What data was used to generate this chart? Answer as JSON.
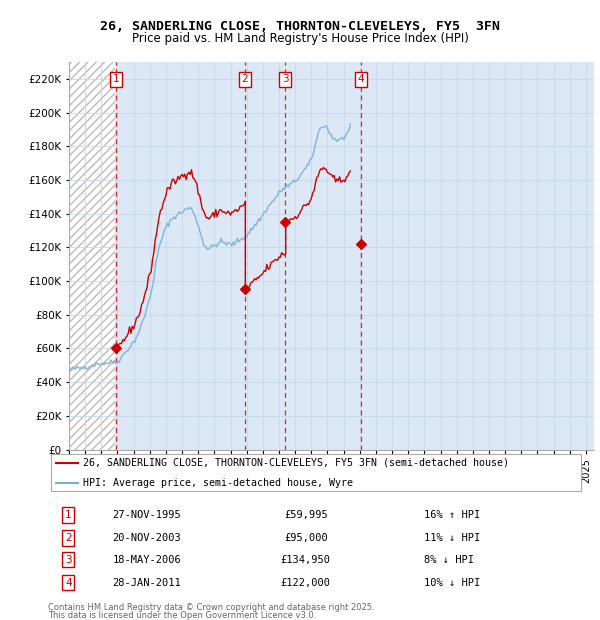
{
  "title_line1": "26, SANDERLING CLOSE, THORNTON-CLEVELEYS, FY5  3FN",
  "title_line2": "Price paid vs. HM Land Registry's House Price Index (HPI)",
  "ylim": [
    0,
    230000
  ],
  "yticks": [
    0,
    20000,
    40000,
    60000,
    80000,
    100000,
    120000,
    140000,
    160000,
    180000,
    200000,
    220000
  ],
  "xlim_start": 1993.0,
  "xlim_end": 2025.5,
  "background_hatch_end": 1995.83,
  "legend_line1": "26, SANDERLING CLOSE, THORNTON-CLEVELEYS, FY5 3FN (semi-detached house)",
  "legend_line2": "HPI: Average price, semi-detached house, Wyre",
  "transactions": [
    {
      "num": 1,
      "date": "27-NOV-1995",
      "price": 59995,
      "pct": "16%",
      "dir": "↑",
      "year": 1995.92
    },
    {
      "num": 2,
      "date": "20-NOV-2003",
      "price": 95000,
      "pct": "11%",
      "dir": "↓",
      "year": 2003.89
    },
    {
      "num": 3,
      "date": "18-MAY-2006",
      "price": 134950,
      "pct": "8%",
      "dir": "↓",
      "year": 2006.38
    },
    {
      "num": 4,
      "date": "28-JAN-2011",
      "price": 122000,
      "pct": "10%",
      "dir": "↓",
      "year": 2011.08
    }
  ],
  "footer_line1": "Contains HM Land Registry data © Crown copyright and database right 2025.",
  "footer_line2": "This data is licensed under the Open Government Licence v3.0.",
  "red_line_color": "#cc0000",
  "blue_line_color": "#7aafd4",
  "grid_color": "#c8d8e8",
  "background_blue": "#dce8f5",
  "hpi_base_values": [
    47500,
    47600,
    47700,
    47800,
    47900,
    48000,
    48100,
    48200,
    48300,
    48400,
    48500,
    48600,
    49000,
    49200,
    49400,
    49600,
    49800,
    50000,
    50200,
    50400,
    50600,
    50800,
    51000,
    51200,
    51000,
    51100,
    51200,
    51300,
    51400,
    51500,
    51600,
    51700,
    51800,
    51900,
    52000,
    52100,
    52500,
    53200,
    54000,
    54900,
    55800,
    56800,
    57800,
    58800,
    59800,
    60800,
    61800,
    62800,
    63800,
    65000,
    66500,
    68200,
    70000,
    72000,
    74200,
    76500,
    79000,
    81500,
    84200,
    87000,
    90000,
    93500,
    97500,
    102000,
    107000,
    112000,
    116000,
    119500,
    122500,
    125000,
    127500,
    129500,
    131500,
    133000,
    134500,
    135500,
    136500,
    137200,
    138000,
    138500,
    139000,
    139500,
    140000,
    140500,
    141000,
    141500,
    142000,
    142500,
    143000,
    143200,
    143000,
    142500,
    141500,
    140000,
    138000,
    135500,
    133000,
    130000,
    127500,
    125000,
    122500,
    121000,
    120000,
    119500,
    119200,
    119500,
    120000,
    120500,
    121000,
    121500,
    122000,
    122500,
    123000,
    123200,
    123000,
    122800,
    122500,
    122200,
    122000,
    121800,
    121500,
    121500,
    122000,
    122500,
    123000,
    123500,
    124000,
    124500,
    125000,
    125500,
    126000,
    126500,
    127000,
    128000,
    129000,
    130000,
    131000,
    132000,
    133000,
    134000,
    135000,
    136000,
    137000,
    138000,
    139000,
    140500,
    142000,
    143000,
    144000,
    145000,
    146000,
    147000,
    148000,
    149000,
    150000,
    151000,
    152000,
    153000,
    154000,
    154500,
    155000,
    155500,
    156000,
    156500,
    157000,
    157500,
    158000,
    158500,
    159000,
    160000,
    161000,
    162000,
    163000,
    164000,
    165000,
    166000,
    167000,
    168000,
    169000,
    170000,
    172000,
    175000,
    178000,
    181000,
    184000,
    187000,
    189500,
    191000,
    192000,
    192500,
    192000,
    191500,
    190500,
    189000,
    187500,
    186000,
    185000,
    184500,
    184000,
    183800,
    183500,
    183500,
    184000,
    184500,
    185000,
    186000,
    187000,
    188000,
    189000,
    190000
  ],
  "hpi_noise_seed": 42
}
